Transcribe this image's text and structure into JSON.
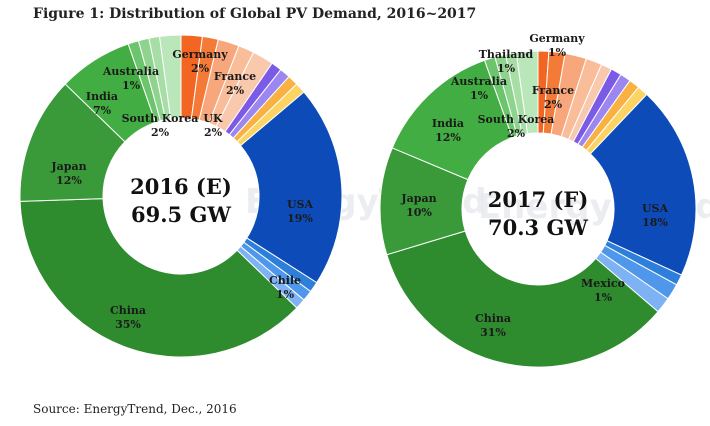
{
  "figure": {
    "title": "Figure 1: Distribution of Global PV Demand, 2016~2017",
    "source": "Source: EnergyTrend, Dec., 2016",
    "watermark": "EnergyTrend"
  },
  "chart_data": [
    {
      "type": "pie",
      "style": "donut",
      "center_text": [
        "2016 (E)",
        "69.5 GW"
      ],
      "unit": "%",
      "slices": [
        {
          "label": "Germany",
          "value": 2,
          "color": "#f26522"
        },
        {
          "label": "",
          "value": 1.5,
          "color": "#f47a38"
        },
        {
          "label": "France",
          "value": 2,
          "color": "#f7a77b"
        },
        {
          "label": "",
          "value": 1.5,
          "color": "#f9bd9a"
        },
        {
          "label": "UK",
          "value": 2,
          "color": "#f9c9ad"
        },
        {
          "label": "",
          "value": 1,
          "color": "#7b5be6"
        },
        {
          "label": "",
          "value": 1,
          "color": "#9c86ef"
        },
        {
          "label": "",
          "value": 1,
          "color": "#f8b142"
        },
        {
          "label": "",
          "value": 1,
          "color": "#fbd463"
        },
        {
          "label": "USA",
          "value": 19,
          "color": "#0d4cb8"
        },
        {
          "label": "Chile",
          "value": 1,
          "color": "#2e7fd9"
        },
        {
          "label": "",
          "value": 1,
          "color": "#4f97ea"
        },
        {
          "label": "",
          "value": 1,
          "color": "#7db2f4"
        },
        {
          "label": "China",
          "value": 35,
          "color": "#2e8b2e"
        },
        {
          "label": "Japan",
          "value": 12,
          "color": "#3a9a3a"
        },
        {
          "label": "India",
          "value": 7,
          "color": "#42ad42"
        },
        {
          "label": "Australia",
          "value": 1,
          "color": "#6cc46c"
        },
        {
          "label": "",
          "value": 1,
          "color": "#8ed38e"
        },
        {
          "label": "",
          "value": 1,
          "color": "#a6dea6"
        },
        {
          "label": "South Korea",
          "value": 2,
          "color": "#b9e7b9"
        }
      ],
      "label_texts": [
        {
          "name": "Germany",
          "pct": "2%",
          "white": false
        },
        {
          "name": "France",
          "pct": "2%",
          "white": false
        },
        {
          "name": "UK",
          "pct": "2%",
          "white": false
        },
        {
          "name": "USA",
          "pct": "19%",
          "white": false
        },
        {
          "name": "Chile",
          "pct": "1%",
          "white": false
        },
        {
          "name": "China",
          "pct": "35%",
          "white": false
        },
        {
          "name": "Japan",
          "pct": "12%",
          "white": false
        },
        {
          "name": "India",
          "pct": "7%",
          "white": false
        },
        {
          "name": "Australia",
          "pct": "1%",
          "white": false
        },
        {
          "name": "South Korea",
          "pct": "2%",
          "white": false
        }
      ]
    },
    {
      "type": "pie",
      "style": "donut",
      "center_text": [
        "2017 (F)",
        "70.3 GW"
      ],
      "unit": "%",
      "slices": [
        {
          "label": "Germany",
          "value": 1,
          "color": "#f26522"
        },
        {
          "label": "",
          "value": 1.5,
          "color": "#f47a38"
        },
        {
          "label": "France",
          "value": 2,
          "color": "#f7a77b"
        },
        {
          "label": "",
          "value": 1.5,
          "color": "#f9bd9a"
        },
        {
          "label": "",
          "value": 1,
          "color": "#f9c9ad"
        },
        {
          "label": "",
          "value": 1,
          "color": "#7b5be6"
        },
        {
          "label": "",
          "value": 1,
          "color": "#9c86ef"
        },
        {
          "label": "",
          "value": 1,
          "color": "#f8b142"
        },
        {
          "label": "",
          "value": 1,
          "color": "#fbd463"
        },
        {
          "label": "USA",
          "value": 18,
          "color": "#0d4cb8"
        },
        {
          "label": "Mexico",
          "value": 1,
          "color": "#2e7fd9"
        },
        {
          "label": "",
          "value": 1.5,
          "color": "#4f97ea"
        },
        {
          "label": "",
          "value": 1.5,
          "color": "#7db2f4"
        },
        {
          "label": "China",
          "value": 31,
          "color": "#2e8b2e"
        },
        {
          "label": "Japan",
          "value": 10,
          "color": "#3a9a3a"
        },
        {
          "label": "India",
          "value": 12,
          "color": "#42ad42"
        },
        {
          "label": "Australia",
          "value": 1,
          "color": "#6cc46c"
        },
        {
          "label": "Thailand",
          "value": 1,
          "color": "#8ed38e"
        },
        {
          "label": "",
          "value": 1,
          "color": "#a6dea6"
        },
        {
          "label": "South Korea",
          "value": 2,
          "color": "#b9e7b9"
        }
      ],
      "label_texts": [
        {
          "name": "Germany",
          "pct": "1%",
          "white": false
        },
        {
          "name": "Thailand",
          "pct": "1%",
          "white": false
        },
        {
          "name": "France",
          "pct": "2%",
          "white": false
        },
        {
          "name": "USA",
          "pct": "18%",
          "white": false
        },
        {
          "name": "Mexico",
          "pct": "1%",
          "white": false
        },
        {
          "name": "China",
          "pct": "31%",
          "white": false
        },
        {
          "name": "Japan",
          "pct": "10%",
          "white": false
        },
        {
          "name": "India",
          "pct": "12%",
          "white": false
        },
        {
          "name": "Australia",
          "pct": "1%",
          "white": false
        },
        {
          "name": "South Korea",
          "pct": "2%",
          "white": false
        }
      ]
    }
  ]
}
